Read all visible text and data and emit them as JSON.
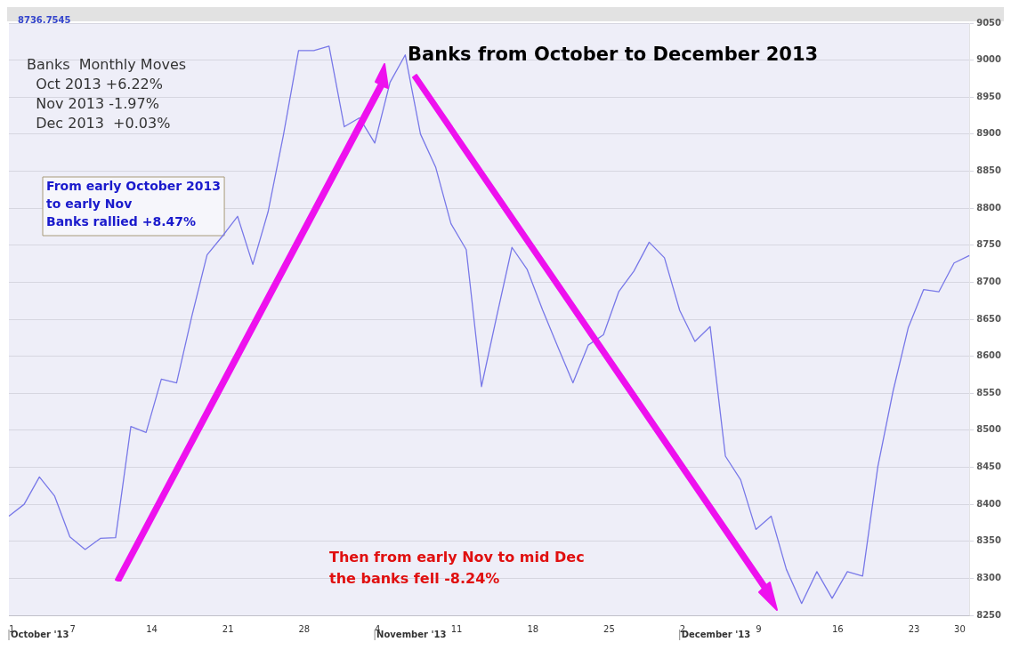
{
  "chart_data": {
    "type": "line",
    "title": "Banks from October to December 2013",
    "categories": [
      "1",
      null,
      null,
      null,
      "7",
      null,
      null,
      null,
      null,
      "14",
      null,
      null,
      null,
      null,
      "21",
      null,
      null,
      null,
      null,
      "28",
      null,
      null,
      null,
      null,
      "4",
      null,
      null,
      null,
      null,
      "11",
      null,
      null,
      null,
      null,
      "18",
      null,
      null,
      null,
      null,
      "25",
      null,
      null,
      null,
      null,
      "2",
      null,
      null,
      null,
      null,
      "9",
      null,
      null,
      null,
      null,
      "16",
      null,
      null,
      null,
      null,
      "23",
      null,
      null,
      "30",
      null
    ],
    "series": [
      {
        "color": "#7878e8",
        "values": [
          8384,
          8400,
          8437,
          8411,
          8356,
          8339,
          8354,
          8355,
          8505,
          8497,
          8569,
          8564,
          8654,
          8737,
          8762,
          8789,
          8724,
          8795,
          8898,
          9013,
          9013,
          9019,
          8910,
          8922,
          8888,
          8970,
          9007,
          8900,
          8855,
          8779,
          8744,
          8559,
          8654,
          8747,
          8717,
          8663,
          8613,
          8564,
          8615,
          8629,
          8687,
          8715,
          8754,
          8733,
          8662,
          8620,
          8640,
          8465,
          8433,
          8366,
          8384,
          8312,
          8266,
          8309,
          8273,
          8309,
          8303,
          8451,
          8553,
          8639,
          8690,
          8687,
          8726,
          8736
        ]
      }
    ],
    "ylim": [
      8250,
      9050
    ],
    "yticks": [
      8250,
      8300,
      8350,
      8400,
      8450,
      8500,
      8550,
      8600,
      8650,
      8700,
      8750,
      8800,
      8850,
      8900,
      8950,
      9000,
      9050
    ],
    "grid": "y",
    "legend": false,
    "marker": "none",
    "line_style": "solid",
    "annotations": [
      "8736.7545",
      "Banks  Monthly Moves\n  Oct 2013 +6.22%\n  Nov 2013 -1.97%\n  Dec 2013  +0.03%",
      "From early October 2013\nto early Nov\nBanks rallied +8.47%",
      "Then from early Nov to mid Dec\nthe banks fell -8.24%",
      "October '13",
      "November '13",
      "December '13"
    ]
  }
}
